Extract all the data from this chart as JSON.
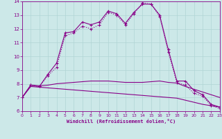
{
  "xlabel": "Windchill (Refroidissement éolien,°C)",
  "background_color": "#cce8e8",
  "grid_color": "#b0d4d4",
  "line_color": "#880088",
  "xlim": [
    0,
    23
  ],
  "ylim": [
    6,
    14
  ],
  "xticks": [
    0,
    1,
    2,
    3,
    4,
    5,
    6,
    7,
    8,
    9,
    10,
    11,
    12,
    13,
    14,
    15,
    16,
    17,
    18,
    19,
    20,
    21,
    22,
    23
  ],
  "yticks": [
    6,
    7,
    8,
    9,
    10,
    11,
    12,
    13,
    14
  ],
  "line1_x": [
    0,
    1,
    2,
    3,
    4,
    5,
    6,
    7,
    8,
    9,
    10,
    11,
    12,
    13,
    14,
    15,
    16,
    17,
    18,
    19,
    20,
    21,
    22,
    23
  ],
  "line1_y": [
    7.0,
    7.9,
    7.8,
    8.7,
    9.5,
    11.7,
    11.8,
    12.5,
    12.3,
    12.5,
    13.3,
    13.1,
    12.4,
    13.2,
    13.8,
    13.8,
    13.0,
    10.5,
    8.2,
    8.2,
    7.5,
    7.2,
    6.5,
    6.3
  ],
  "line2_x": [
    0,
    1,
    2,
    3,
    4,
    5,
    6,
    7,
    8,
    9,
    10,
    11,
    12,
    13,
    14,
    15,
    16,
    17,
    18,
    19,
    20,
    21,
    22,
    23
  ],
  "line2_y": [
    7.0,
    7.9,
    7.8,
    8.6,
    9.2,
    11.5,
    11.7,
    12.2,
    12.0,
    12.3,
    13.2,
    13.0,
    12.3,
    13.1,
    13.9,
    13.8,
    12.9,
    10.3,
    8.1,
    7.9,
    7.3,
    7.1,
    6.4,
    6.2
  ],
  "line3_x": [
    0,
    1,
    2,
    3,
    4,
    5,
    6,
    7,
    8,
    9,
    10,
    11,
    12,
    13,
    14,
    15,
    16,
    17,
    18,
    19,
    20,
    21,
    22,
    23
  ],
  "line3_y": [
    7.0,
    7.9,
    7.85,
    7.9,
    8.0,
    8.05,
    8.1,
    8.15,
    8.2,
    8.2,
    8.2,
    8.15,
    8.1,
    8.1,
    8.1,
    8.15,
    8.2,
    8.1,
    8.05,
    7.8,
    7.6,
    7.4,
    7.2,
    7.0
  ],
  "line4_x": [
    0,
    1,
    2,
    3,
    4,
    5,
    6,
    7,
    8,
    9,
    10,
    11,
    12,
    13,
    14,
    15,
    16,
    17,
    18,
    19,
    20,
    21,
    22,
    23
  ],
  "line4_y": [
    7.0,
    7.8,
    7.75,
    7.7,
    7.65,
    7.6,
    7.55,
    7.5,
    7.45,
    7.4,
    7.35,
    7.3,
    7.25,
    7.2,
    7.15,
    7.1,
    7.05,
    7.0,
    6.95,
    6.8,
    6.65,
    6.5,
    6.4,
    6.3
  ]
}
